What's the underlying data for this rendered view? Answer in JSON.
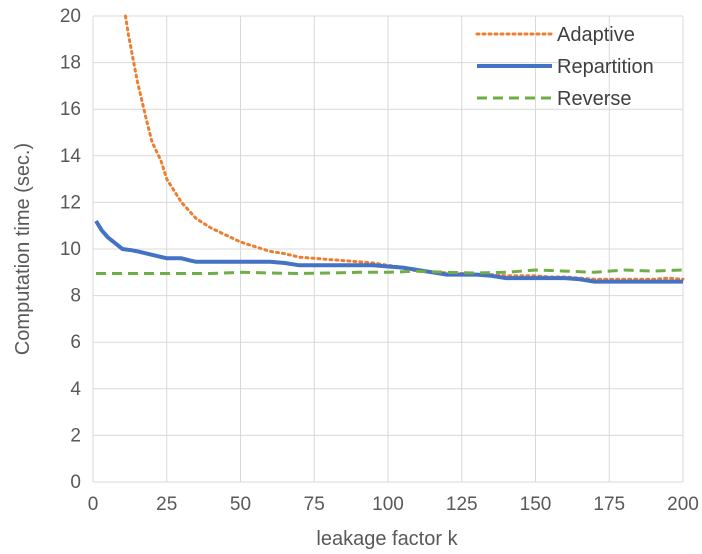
{
  "chart_data": {
    "type": "line",
    "title": "",
    "xlabel": "leakage factor k",
    "ylabel": "Computation time (sec.)",
    "xlim": [
      0,
      200
    ],
    "ylim": [
      0,
      20
    ],
    "x_ticks": [
      0,
      25,
      50,
      75,
      100,
      125,
      150,
      175,
      200
    ],
    "y_ticks": [
      0,
      2,
      4,
      6,
      8,
      10,
      12,
      14,
      16,
      18,
      20
    ],
    "grid": "vertical and horizontal major gridlines",
    "legend_position": "top-right",
    "series": [
      {
        "name": "Adaptive",
        "color": "#ED7D31",
        "style": "dotted",
        "points": [
          [
            11,
            20
          ],
          [
            12,
            19.2
          ],
          [
            15,
            17.2
          ],
          [
            18,
            15.6
          ],
          [
            20,
            14.6
          ],
          [
            23,
            13.8
          ],
          [
            25,
            13.0
          ],
          [
            28,
            12.4
          ],
          [
            30,
            12.0
          ],
          [
            35,
            11.3
          ],
          [
            40,
            10.9
          ],
          [
            45,
            10.6
          ],
          [
            50,
            10.3
          ],
          [
            55,
            10.1
          ],
          [
            60,
            9.9
          ],
          [
            65,
            9.8
          ],
          [
            70,
            9.65
          ],
          [
            75,
            9.6
          ],
          [
            80,
            9.55
          ],
          [
            85,
            9.5
          ],
          [
            90,
            9.45
          ],
          [
            95,
            9.4
          ],
          [
            100,
            9.3
          ],
          [
            105,
            9.2
          ],
          [
            110,
            9.05
          ],
          [
            115,
            9.0
          ],
          [
            120,
            8.98
          ],
          [
            125,
            8.95
          ],
          [
            130,
            8.9
          ],
          [
            135,
            8.9
          ],
          [
            140,
            8.85
          ],
          [
            145,
            8.85
          ],
          [
            150,
            8.85
          ],
          [
            155,
            8.8
          ],
          [
            160,
            8.8
          ],
          [
            165,
            8.75
          ],
          [
            170,
            8.7
          ],
          [
            175,
            8.7
          ],
          [
            180,
            8.7
          ],
          [
            185,
            8.7
          ],
          [
            190,
            8.7
          ],
          [
            195,
            8.75
          ],
          [
            200,
            8.7
          ]
        ]
      },
      {
        "name": "Repartition",
        "color": "#4472C4",
        "style": "solid",
        "points": [
          [
            1,
            11.2
          ],
          [
            3,
            10.8
          ],
          [
            5,
            10.5
          ],
          [
            8,
            10.2
          ],
          [
            10,
            10.0
          ],
          [
            13,
            9.95
          ],
          [
            15,
            9.9
          ],
          [
            20,
            9.75
          ],
          [
            25,
            9.6
          ],
          [
            28,
            9.6
          ],
          [
            30,
            9.6
          ],
          [
            33,
            9.5
          ],
          [
            35,
            9.45
          ],
          [
            40,
            9.45
          ],
          [
            45,
            9.45
          ],
          [
            50,
            9.45
          ],
          [
            55,
            9.45
          ],
          [
            60,
            9.45
          ],
          [
            65,
            9.4
          ],
          [
            70,
            9.3
          ],
          [
            75,
            9.3
          ],
          [
            80,
            9.3
          ],
          [
            85,
            9.3
          ],
          [
            90,
            9.3
          ],
          [
            95,
            9.3
          ],
          [
            100,
            9.25
          ],
          [
            105,
            9.2
          ],
          [
            110,
            9.1
          ],
          [
            115,
            9.0
          ],
          [
            120,
            8.9
          ],
          [
            125,
            8.9
          ],
          [
            130,
            8.9
          ],
          [
            135,
            8.85
          ],
          [
            140,
            8.75
          ],
          [
            145,
            8.75
          ],
          [
            150,
            8.75
          ],
          [
            155,
            8.75
          ],
          [
            160,
            8.75
          ],
          [
            165,
            8.7
          ],
          [
            170,
            8.6
          ],
          [
            175,
            8.6
          ],
          [
            180,
            8.6
          ],
          [
            185,
            8.6
          ],
          [
            190,
            8.6
          ],
          [
            195,
            8.6
          ],
          [
            200,
            8.6
          ]
        ]
      },
      {
        "name": "Reverse",
        "color": "#70AD47",
        "style": "dashed",
        "points": [
          [
            1,
            8.95
          ],
          [
            10,
            8.95
          ],
          [
            20,
            8.95
          ],
          [
            30,
            8.95
          ],
          [
            40,
            8.95
          ],
          [
            50,
            9.0
          ],
          [
            60,
            8.97
          ],
          [
            70,
            8.95
          ],
          [
            80,
            8.97
          ],
          [
            90,
            9.0
          ],
          [
            100,
            9.0
          ],
          [
            110,
            9.05
          ],
          [
            120,
            9.0
          ],
          [
            130,
            8.97
          ],
          [
            140,
            9.0
          ],
          [
            150,
            9.1
          ],
          [
            160,
            9.05
          ],
          [
            170,
            9.0
          ],
          [
            175,
            9.05
          ],
          [
            180,
            9.1
          ],
          [
            190,
            9.05
          ],
          [
            200,
            9.1
          ]
        ]
      }
    ]
  }
}
